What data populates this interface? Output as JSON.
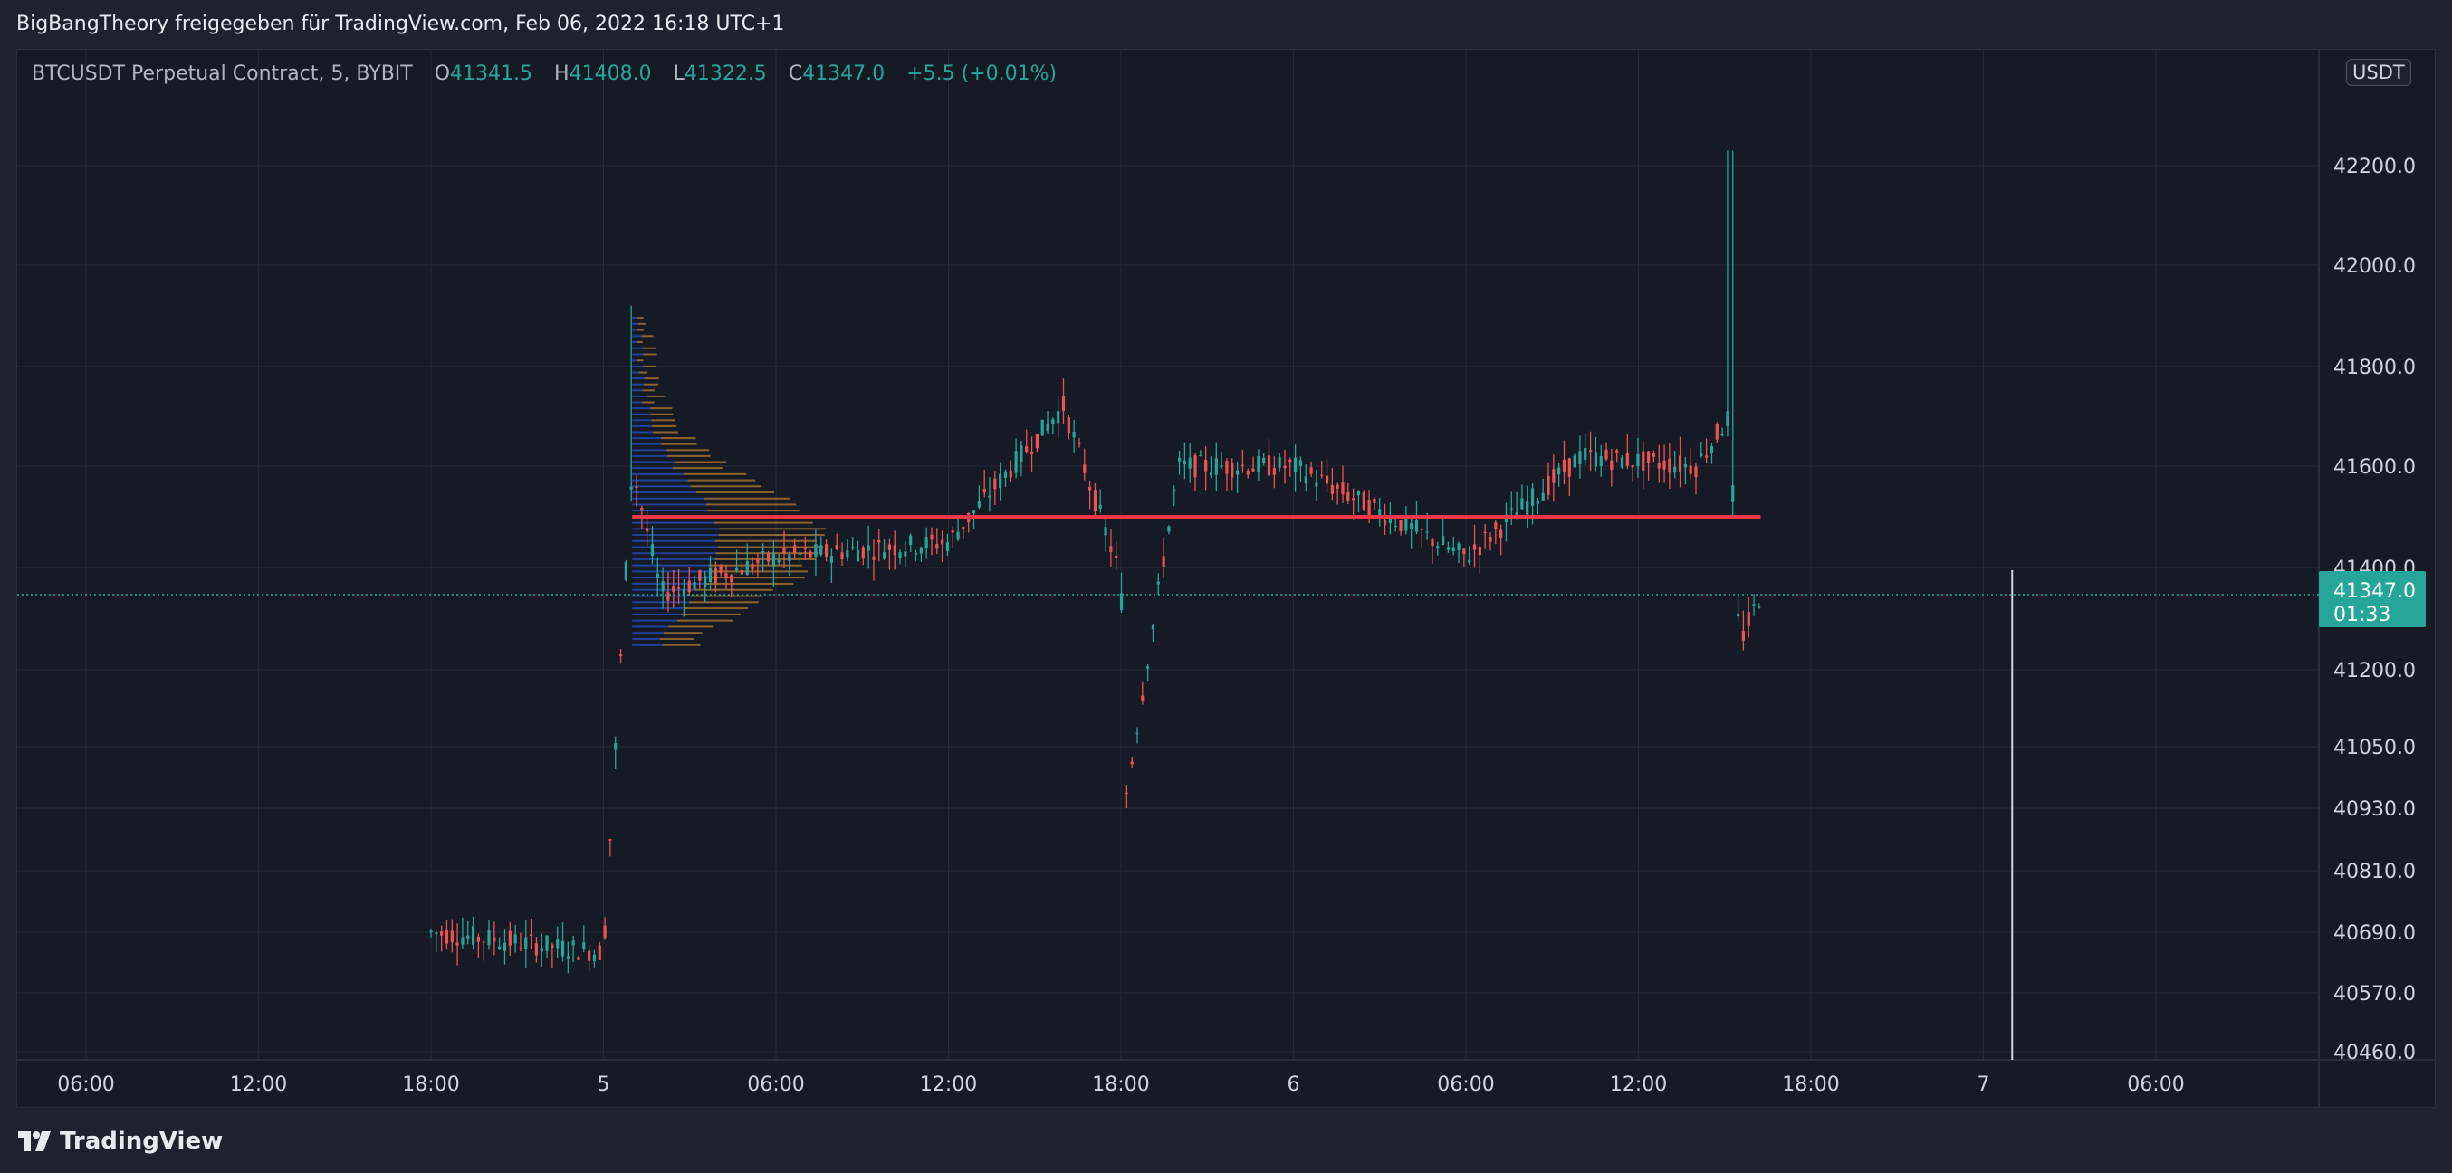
{
  "header": {
    "share_text": "BigBangTheory freigegeben für TradingView.com, Feb 06, 2022 16:18 UTC+1"
  },
  "legend": {
    "symbol": "BTCUSDT Perpetual Contract, 5, BYBIT",
    "open_label": "O",
    "open_value": "41341.5",
    "high_label": "H",
    "high_value": "41408.0",
    "low_label": "L",
    "low_value": "41322.5",
    "close_label": "C",
    "close_value": "41347.0",
    "change": "+5.5 (+0.01%)"
  },
  "unit_badge": "USDT",
  "footer": {
    "brand": "TradingView"
  },
  "colors": {
    "up": "#26a69a",
    "down": "#ef5350",
    "level_line": "#f23645",
    "volume_profile_up": "#2962ff",
    "volume_profile_down": "#f0a030",
    "price_label_bg": "#26a69a",
    "grid": "#252934",
    "background": "#161a25"
  },
  "chart_data": {
    "type": "candlestick",
    "symbol": "BTCUSDT Perpetual Contract",
    "interval": "5",
    "exchange": "BYBIT",
    "x_ticks": [
      "06:00",
      "12:00",
      "18:00",
      "5",
      "06:00",
      "12:00",
      "18:00",
      "6",
      "06:00",
      "12:00",
      "18:00",
      "7",
      "06:00"
    ],
    "y_ticks": [
      "40460.0",
      "40570.0",
      "40690.0",
      "40810.0",
      "40930.0",
      "41050.0",
      "41200.0",
      "41400.0",
      "41600.0",
      "41800.0",
      "42000.0",
      "42200.0"
    ],
    "y_scale": "compressed (non-linear)",
    "current_price": "41347.0",
    "countdown": "01:33",
    "horizontal_level": 41500,
    "key_points": [
      {
        "time": "Feb 4 18:00",
        "price": 40690
      },
      {
        "time": "Feb 5 00:00",
        "price": 40650
      },
      {
        "time": "Feb 5 01:00",
        "price": 41600
      },
      {
        "time": "Feb 5 02:00",
        "price": 41350
      },
      {
        "time": "Feb 5 06:00",
        "price": 41420
      },
      {
        "time": "Feb 5 12:00",
        "price": 41450
      },
      {
        "time": "Feb 5 16:00",
        "price": 41720
      },
      {
        "time": "Feb 5 18:00",
        "price": 41380
      },
      {
        "time": "Feb 5 18:10",
        "price": 40950
      },
      {
        "time": "Feb 5 20:00",
        "price": 41600
      },
      {
        "time": "Feb 6 00:00",
        "price": 41600
      },
      {
        "time": "Feb 6 06:00",
        "price": 41420
      },
      {
        "time": "Feb 6 10:00",
        "price": 41620
      },
      {
        "time": "Feb 6 14:00",
        "price": 41600
      },
      {
        "time": "Feb 6 15:10",
        "price": 41700
      },
      {
        "time": "Feb 6 15:30",
        "price": 41250
      },
      {
        "time": "Feb 6 16:15",
        "price": 41347
      }
    ],
    "range_high": 42230,
    "range_low": 40460,
    "grid": true
  }
}
